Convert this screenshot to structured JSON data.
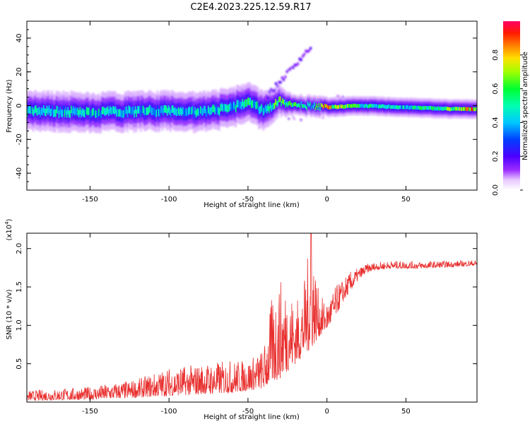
{
  "figure": {
    "title": "C2E4.2023.225.12.59.R17"
  },
  "chart_data": [
    {
      "type": "heatmap",
      "title": "C2E4.2023.225.12.59.R17",
      "xlabel": "Height of straight line (km)",
      "ylabel": "Frequency (Hz)",
      "xlim": [
        -190,
        95
      ],
      "ylim": [
        -50,
        50
      ],
      "xticks": [
        -150,
        -100,
        -50,
        0,
        50
      ],
      "yticks": [
        -40,
        -20,
        0,
        20,
        40
      ],
      "grid": false,
      "colorbar": {
        "label": "Normalized spectral amplitude",
        "range": [
          0,
          1
        ],
        "ticks": [
          "0.0",
          "0.2",
          "0.4",
          "0.6",
          "0.8"
        ],
        "colormap": "rainbow (white, purple, blue, cyan, green, yellow, orange, red, magenta)"
      },
      "ridge": {
        "x": [
          -190,
          -150,
          -100,
          -80,
          -60,
          -50,
          -40,
          -30,
          -20,
          -10,
          0,
          20,
          50,
          80,
          95
        ],
        "center_freq_hz": [
          -3,
          -4,
          -3,
          -4,
          -1,
          2,
          -3,
          3,
          0,
          0,
          -1,
          0,
          -1,
          -2,
          -2
        ],
        "halfwidth_hz": [
          4,
          4,
          4,
          4,
          4,
          4,
          4,
          3,
          2,
          2,
          2,
          2,
          2,
          2,
          2
        ],
        "peak_amplitude": [
          0.5,
          0.5,
          0.5,
          0.5,
          0.5,
          0.6,
          0.5,
          0.7,
          0.6,
          0.5,
          0.9,
          0.6,
          0.5,
          0.7,
          0.95
        ]
      }
    },
    {
      "type": "line",
      "xlabel": "Height of straight line (km)",
      "ylabel": "SNR (10 * v/v)",
      "y_multiplier_label": "(x10",
      "y_multiplier_exp": "4",
      "xlim": [
        -190,
        95
      ],
      "ylim": [
        0,
        2.2
      ],
      "xticks": [
        -150,
        -100,
        -50,
        0,
        50
      ],
      "yticks": [
        0.5,
        1.0,
        1.5,
        2.0
      ],
      "line_color": "#e8302f",
      "envelope_x": [
        -190,
        -150,
        -120,
        -100,
        -80,
        -60,
        -50,
        -40,
        -35,
        -30,
        -25,
        -20,
        -15,
        -10,
        -5,
        0,
        5,
        10,
        15,
        20,
        25,
        30,
        40,
        50,
        60,
        70,
        80,
        95
      ],
      "envelope_base": [
        0.02,
        0.03,
        0.06,
        0.08,
        0.1,
        0.12,
        0.15,
        0.18,
        0.25,
        0.3,
        0.4,
        0.5,
        0.6,
        0.7,
        0.85,
        0.95,
        1.1,
        1.3,
        1.45,
        1.6,
        1.68,
        1.72,
        1.74,
        1.74,
        1.74,
        1.75,
        1.76,
        1.78
      ],
      "envelope_peak": [
        0.15,
        0.2,
        0.3,
        0.45,
        0.5,
        0.55,
        0.55,
        0.7,
        1.35,
        1.6,
        1.55,
        1.3,
        1.5,
        2.2,
        1.4,
        1.3,
        1.5,
        1.6,
        1.7,
        1.75,
        1.8,
        1.82,
        1.84,
        1.84,
        1.83,
        1.84,
        1.84,
        1.85
      ],
      "spike": {
        "x": -10,
        "y": 2.2
      }
    }
  ]
}
